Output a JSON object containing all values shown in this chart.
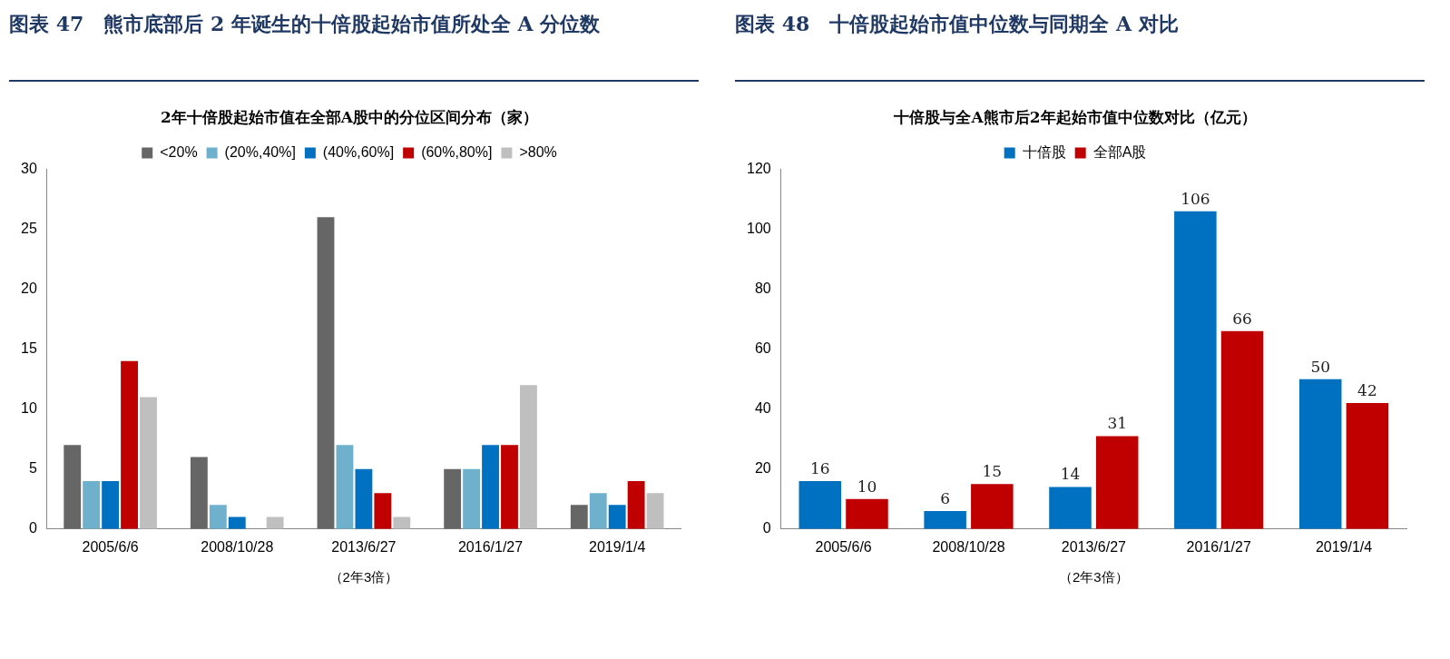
{
  "chart_data": [
    {
      "type": "bar",
      "title": "图表 47　熊市底部后 2 年诞生的十倍股起始市值所处全 A 分位数",
      "subtitle": "2年十倍股起始市值在全部A股中的分位区间分布（家）",
      "xlabel": "（2年3倍）",
      "categories": [
        "2005/6/6",
        "2008/10/28",
        "2013/6/27",
        "2016/1/27",
        "2019/1/4"
      ],
      "series": [
        {
          "name": "<20%",
          "color": "#666666",
          "values": [
            7,
            6,
            26,
            5,
            2
          ]
        },
        {
          "name": "(20%,40%]",
          "color": "#6fb0cc",
          "values": [
            4,
            2,
            7,
            5,
            3
          ]
        },
        {
          "name": "(40%,60%]",
          "color": "#0070c0",
          "values": [
            4,
            1,
            5,
            7,
            2
          ]
        },
        {
          "name": "(60%,80%]",
          "color": "#c00000",
          "values": [
            14,
            0,
            3,
            7,
            4
          ]
        },
        {
          "name": ">80%",
          "color": "#bfbfbf",
          "values": [
            11,
            1,
            1,
            12,
            3
          ]
        }
      ],
      "ylim": [
        0,
        30
      ],
      "yticks": [
        0,
        5,
        10,
        15,
        20,
        25,
        30
      ],
      "legend": "top",
      "grid": false
    },
    {
      "type": "bar",
      "title": "图表 48　十倍股起始市值中位数与同期全 A 对比",
      "subtitle": "十倍股与全A熊市后2年起始市值中位数对比（亿元）",
      "xlabel": "（2年3倍）",
      "categories": [
        "2005/6/6",
        "2008/10/28",
        "2013/6/27",
        "2016/1/27",
        "2019/1/4"
      ],
      "series": [
        {
          "name": "十倍股",
          "color": "#0070c0",
          "values": [
            16,
            6,
            14,
            106,
            50
          ]
        },
        {
          "name": "全部A股",
          "color": "#c00000",
          "values": [
            10,
            15,
            31,
            66,
            42
          ]
        }
      ],
      "ylim": [
        0,
        120
      ],
      "yticks": [
        0,
        20,
        40,
        60,
        80,
        100,
        120
      ],
      "legend": "top",
      "grid": false,
      "data_labels": true
    }
  ]
}
